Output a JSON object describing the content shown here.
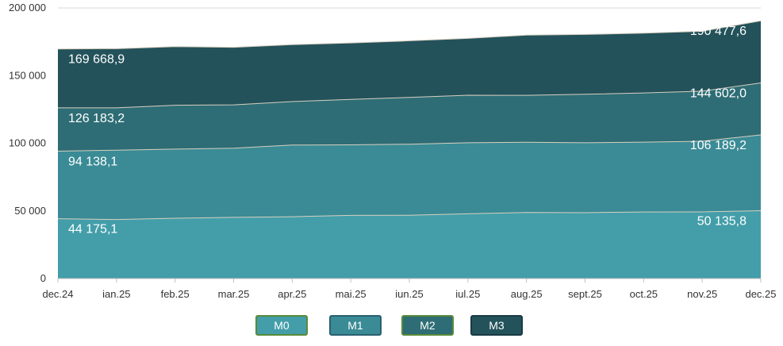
{
  "chart_data": {
    "type": "area",
    "stacked": false,
    "categories": [
      "dec.24",
      "ian.25",
      "feb.25",
      "mar.25",
      "apr.25",
      "mai.25",
      "iun.25",
      "iul.25",
      "aug.25",
      "sept.25",
      "oct.25",
      "nov.25",
      "dec.25"
    ],
    "ylim": [
      0,
      200000
    ],
    "yticks": [
      0,
      50000,
      100000,
      150000,
      200000
    ],
    "ytick_labels": [
      "0",
      "50 000",
      "100 000",
      "150 000",
      "200 000"
    ],
    "grid": true,
    "legend_position": "bottom",
    "series": [
      {
        "name": "M0",
        "color": "#439ea9",
        "border": "#5a8a3a",
        "values": [
          44175.1,
          43600,
          44600,
          45200,
          45700,
          46700,
          46800,
          47900,
          48800,
          48700,
          49200,
          49300,
          50135.8
        ]
      },
      {
        "name": "M1",
        "color": "#3a8b95",
        "border": "#2a6070",
        "values": [
          94138.1,
          94900,
          95700,
          96300,
          98700,
          98800,
          99300,
          100400,
          100700,
          100400,
          100800,
          101500,
          106189.2
        ]
      },
      {
        "name": "M2",
        "color": "#2e6d75",
        "border": "#5a8a3a",
        "values": [
          126183.2,
          126200,
          128100,
          128400,
          130800,
          132400,
          133900,
          135500,
          135400,
          136200,
          137200,
          138500,
          144602.0
        ]
      },
      {
        "name": "M3",
        "color": "#23525b",
        "border": "#1a3a44",
        "values": [
          169668.9,
          169900,
          171400,
          170900,
          172900,
          174100,
          175700,
          177500,
          179900,
          180400,
          181400,
          182800,
          190477.6
        ]
      }
    ],
    "data_labels": [
      {
        "series": "M0",
        "first": "44 175,1",
        "last": "50 135,8"
      },
      {
        "series": "M1",
        "first": "94 138,1",
        "last": "106 189,2"
      },
      {
        "series": "M2",
        "first": "126 183,2",
        "last": "144 602,0"
      },
      {
        "series": "M3",
        "first": "169 668,9",
        "last": "190 477,6"
      }
    ]
  }
}
